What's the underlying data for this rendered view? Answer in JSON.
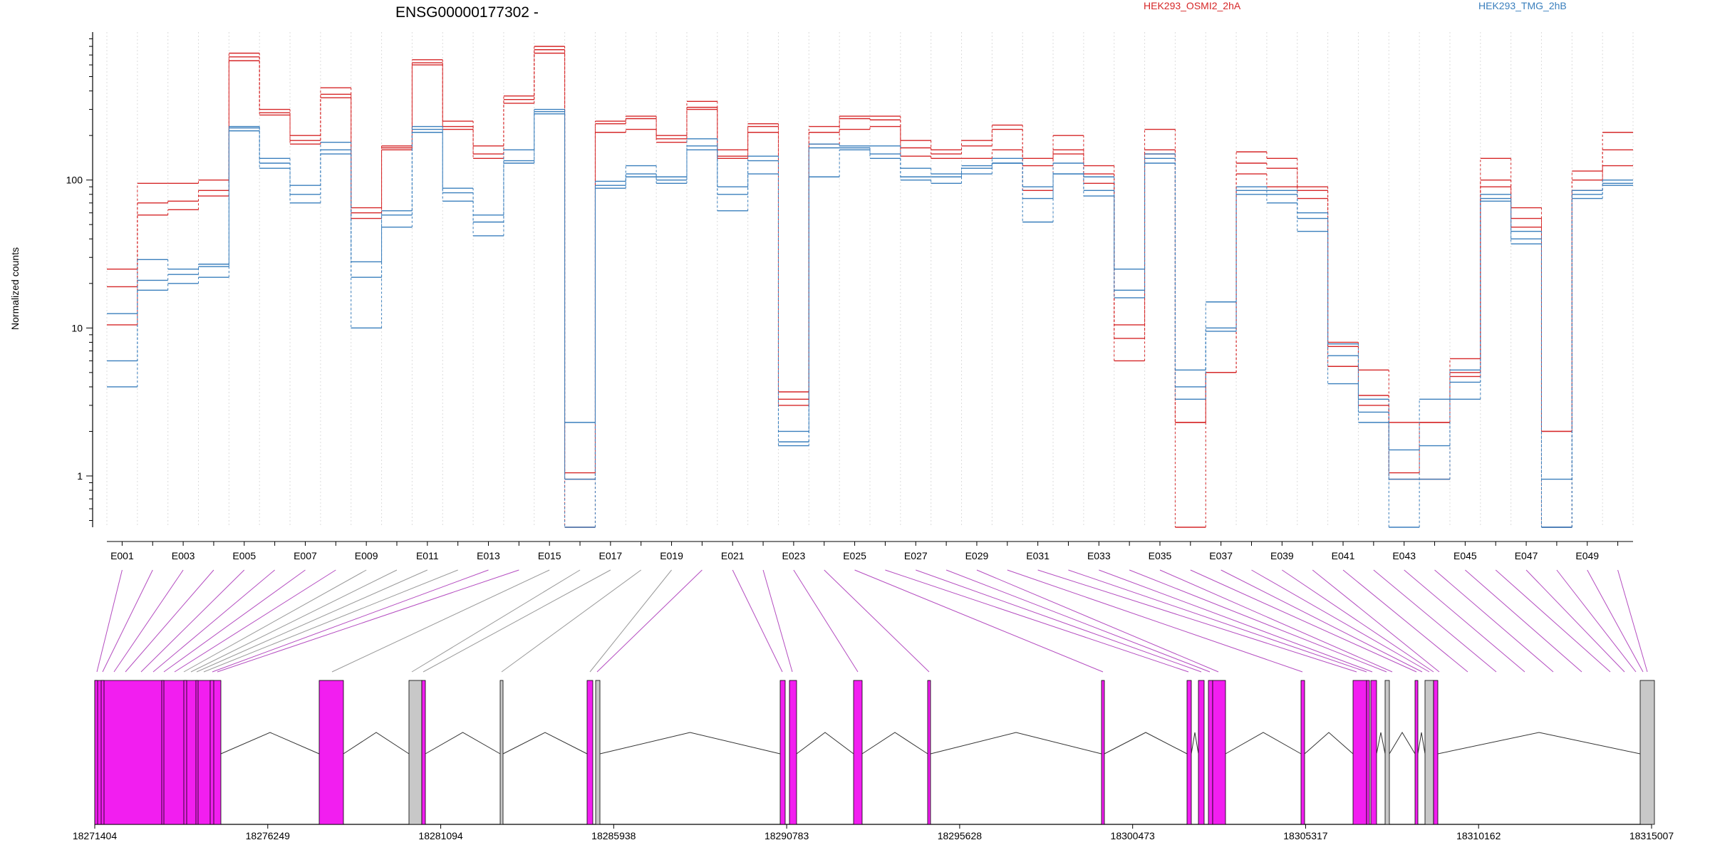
{
  "chart_data": {
    "type": "line",
    "title": "ENSG00000177302 -",
    "ylabel": "Normalized counts",
    "xlabel": "",
    "y_scale": "log",
    "ylim": [
      0.45,
      1000
    ],
    "y_ticks": [
      1,
      10,
      100
    ],
    "y_tick_labels": [
      "1",
      "10",
      "100"
    ],
    "legend": [
      {
        "name": "HEK293_OSMI2_2hA",
        "color": "#d62728"
      },
      {
        "name": "HEK293_TMG_2hB",
        "color": "#3a7fbd"
      }
    ],
    "legend_placement": "top",
    "grid": "vertical-dotted",
    "exons": [
      "E001",
      "E002",
      "E003",
      "E004",
      "E005",
      "E006",
      "E007",
      "E008",
      "E009",
      "E010",
      "E011",
      "E012",
      "E013",
      "E014",
      "E015",
      "E016",
      "E017",
      "E018",
      "E019",
      "E020",
      "E021",
      "E022",
      "E023",
      "E024",
      "E025",
      "E026",
      "E027",
      "E028",
      "E029",
      "E030",
      "E031",
      "E032",
      "E033",
      "E034",
      "E035",
      "E036",
      "E037",
      "E038",
      "E039",
      "E040",
      "E041",
      "E042",
      "E043",
      "E044",
      "E045",
      "E046",
      "E047",
      "E048",
      "E049",
      "E050"
    ],
    "exon_tick_labels": [
      "E001",
      "E003",
      "E005",
      "E007",
      "E009",
      "E011",
      "E013",
      "E015",
      "E017",
      "E019",
      "E021",
      "E023",
      "E025",
      "E027",
      "E029",
      "E031",
      "E033",
      "E035",
      "E037",
      "E039",
      "E041",
      "E043",
      "E045",
      "E047",
      "E049"
    ],
    "series": [
      {
        "name": "HEK293_OSMI2_2hA",
        "group": "OSMI2",
        "values": [
          25,
          95,
          95,
          100,
          720,
          300,
          200,
          420,
          65,
          170,
          650,
          250,
          170,
          370,
          800,
          1.05,
          250,
          270,
          200,
          340,
          160,
          240,
          3.7,
          230,
          270,
          270,
          185,
          160,
          185,
          235,
          140,
          200,
          125,
          10.5,
          220,
          2.3,
          5,
          155,
          140,
          90,
          8,
          5.2,
          2.3,
          2.3,
          6.2,
          140,
          65,
          2,
          115,
          210
        ]
      },
      {
        "name": "HEK293_OSMI2_2hA",
        "group": "OSMI2",
        "values": [
          19,
          70,
          72,
          85,
          680,
          285,
          185,
          380,
          60,
          165,
          620,
          230,
          150,
          350,
          760,
          0.95,
          240,
          260,
          190,
          310,
          145,
          230,
          3.3,
          210,
          260,
          255,
          165,
          150,
          170,
          220,
          125,
          160,
          110,
          8.5,
          160,
          2.3,
          5,
          130,
          120,
          85,
          7.5,
          3.5,
          1.05,
          2.3,
          5,
          100,
          55,
          2,
          100,
          160
        ]
      },
      {
        "name": "HEK293_OSMI2_2hA",
        "group": "OSMI2",
        "values": [
          10.5,
          58,
          63,
          78,
          640,
          275,
          175,
          360,
          55,
          160,
          600,
          220,
          140,
          330,
          720,
          0.45,
          210,
          220,
          180,
          300,
          140,
          210,
          3,
          175,
          220,
          230,
          145,
          140,
          140,
          160,
          85,
          150,
          95,
          6,
          150,
          0.45,
          5,
          110,
          90,
          75,
          5.5,
          3,
          0.95,
          0.95,
          4.7,
          90,
          48,
          0.45,
          85,
          125
        ]
      },
      {
        "name": "HEK293_TMG_2hB",
        "group": "TMG",
        "values": [
          12.5,
          29,
          25,
          27,
          230,
          140,
          92,
          180,
          28,
          62,
          230,
          88,
          58,
          160,
          300,
          2.3,
          98,
          125,
          105,
          190,
          90,
          145,
          2,
          175,
          170,
          170,
          120,
          110,
          125,
          140,
          90,
          130,
          105,
          25,
          150,
          5.2,
          15,
          90,
          85,
          60,
          7.8,
          3.3,
          1.5,
          3.3,
          5.2,
          80,
          45,
          0.95,
          85,
          100
        ]
      },
      {
        "name": "HEK293_TMG_2hB",
        "group": "TMG",
        "values": [
          6,
          21,
          23,
          26,
          225,
          130,
          80,
          160,
          22,
          58,
          220,
          82,
          52,
          135,
          290,
          0.95,
          92,
          110,
          100,
          170,
          80,
          135,
          1.7,
          165,
          165,
          150,
          105,
          105,
          120,
          130,
          75,
          110,
          85,
          18,
          140,
          4,
          10,
          85,
          80,
          55,
          6.5,
          2.7,
          0.95,
          1.6,
          4.3,
          75,
          40,
          0.45,
          80,
          95
        ]
      },
      {
        "name": "HEK293_TMG_2hB",
        "group": "TMG",
        "values": [
          4,
          18,
          20,
          22,
          215,
          120,
          70,
          150,
          10,
          48,
          210,
          72,
          42,
          130,
          280,
          0.45,
          88,
          105,
          95,
          160,
          62,
          110,
          1.6,
          105,
          160,
          140,
          100,
          95,
          110,
          130,
          52,
          110,
          78,
          16,
          130,
          3.3,
          9.5,
          80,
          70,
          45,
          4.2,
          2.3,
          0.45,
          0.95,
          3.3,
          72,
          37,
          0.45,
          75,
          92
        ]
      }
    ],
    "gene_model": {
      "coordinate_labels": [
        "18271404",
        "18276249",
        "18281094",
        "18285938",
        "18290783",
        "18295628",
        "18300473",
        "18305317",
        "18310162",
        "18315007"
      ],
      "x_range": [
        18271404,
        18315007
      ],
      "exon_colors": {
        "counted": "#f21ef0",
        "not_counted": "#c8c8c8"
      }
    }
  }
}
